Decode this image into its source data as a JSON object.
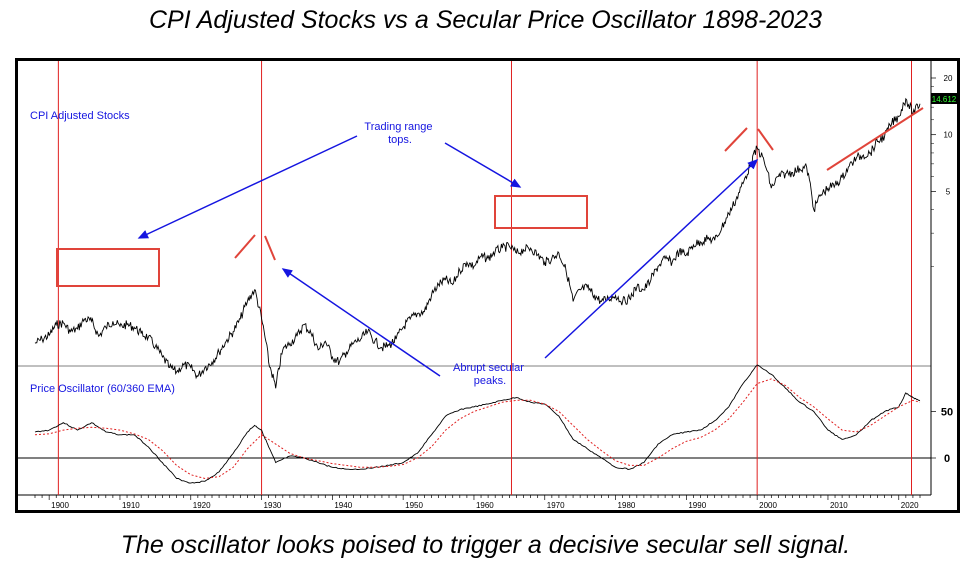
{
  "title": "CPI Adjusted Stocks vs a Secular Price Oscillator 1898-2023",
  "caption": "The oscillator looks poised to trigger a decisive secular sell signal.",
  "chart_data": [
    {
      "type": "line",
      "label": "CPI Adjusted Stocks",
      "y_scale": "log",
      "y_ticks": [
        5,
        10,
        20
      ],
      "last_value_badge": "14.612",
      "x_ticks": [
        "1900",
        "1910",
        "1920",
        "1930",
        "1940",
        "1950",
        "1960",
        "1970",
        "1980",
        "1990",
        "2000",
        "2010",
        "2020"
      ],
      "xlim": [
        1898,
        2023
      ],
      "series": [
        {
          "x": [
            1898,
            1899,
            1900,
            1901,
            1902,
            1903,
            1904,
            1905,
            1906,
            1907,
            1908,
            1909,
            1910,
            1911,
            1912,
            1913,
            1914,
            1915,
            1916,
            1917,
            1918,
            1919,
            1920,
            1921,
            1922,
            1923,
            1924,
            1925,
            1926,
            1927,
            1928,
            1929,
            1930,
            1931,
            1932,
            1933,
            1934,
            1935,
            1936,
            1937,
            1938,
            1939,
            1940,
            1941,
            1942,
            1943,
            1944,
            1945,
            1946,
            1947,
            1948,
            1949,
            1950,
            1951,
            1952,
            1953,
            1954,
            1955,
            1956,
            1957,
            1958,
            1959,
            1960,
            1961,
            1962,
            1963,
            1964,
            1965,
            1966,
            1967,
            1968,
            1969,
            1970,
            1971,
            1972,
            1973,
            1974,
            1975,
            1976,
            1977,
            1978,
            1979,
            1980,
            1981,
            1982,
            1983,
            1984,
            1985,
            1986,
            1987,
            1988,
            1989,
            1990,
            1991,
            1992,
            1993,
            1994,
            1995,
            1996,
            1997,
            1998,
            1999,
            2000,
            2001,
            2002,
            2003,
            2004,
            2005,
            2006,
            2007,
            2008,
            2009,
            2010,
            2011,
            2012,
            2013,
            2014,
            2015,
            2016,
            2017,
            2018,
            2019,
            2020,
            2021,
            2022,
            2023
          ],
          "values": [
            0.78,
            0.82,
            0.86,
            0.98,
            1.0,
            0.9,
            0.93,
            1.05,
            1.02,
            0.85,
            0.95,
            1.02,
            0.96,
            0.98,
            0.95,
            0.88,
            0.84,
            0.75,
            0.66,
            0.58,
            0.55,
            0.6,
            0.58,
            0.52,
            0.58,
            0.62,
            0.7,
            0.8,
            0.9,
            1.05,
            1.3,
            1.5,
            1.05,
            0.62,
            0.45,
            0.72,
            0.78,
            0.85,
            0.98,
            0.88,
            0.72,
            0.8,
            0.66,
            0.62,
            0.7,
            0.78,
            0.82,
            0.9,
            0.8,
            0.74,
            0.76,
            0.82,
            0.95,
            1.05,
            1.12,
            1.15,
            1.4,
            1.6,
            1.7,
            1.6,
            1.9,
            2.1,
            2.0,
            2.25,
            2.2,
            2.4,
            2.5,
            2.55,
            2.35,
            2.45,
            2.5,
            2.3,
            2.1,
            2.2,
            2.35,
            1.9,
            1.3,
            1.5,
            1.55,
            1.4,
            1.3,
            1.35,
            1.4,
            1.3,
            1.35,
            1.55,
            1.5,
            1.7,
            2.0,
            2.2,
            2.1,
            2.4,
            2.3,
            2.6,
            2.7,
            2.8,
            2.75,
            3.2,
            3.8,
            4.5,
            5.5,
            6.8,
            8.5,
            7.2,
            5.2,
            6.0,
            6.2,
            6.3,
            6.6,
            6.7,
            4.0,
            4.8,
            5.2,
            5.4,
            5.9,
            6.8,
            7.5,
            7.8,
            8.0,
            9.2,
            9.8,
            11.5,
            12.5,
            15.5,
            13.0,
            14.612
          ]
        }
      ],
      "annotations": [
        "Trading range tops.",
        "Abrupt secular peaks."
      ]
    },
    {
      "type": "line",
      "label": "Price Oscillator (60/360 EMA)",
      "y_ticks": [
        0,
        50
      ],
      "series": [
        {
          "style": "solid",
          "x": [
            1898,
            1900,
            1902,
            1904,
            1906,
            1908,
            1910,
            1912,
            1914,
            1916,
            1918,
            1920,
            1922,
            1924,
            1926,
            1928,
            1929,
            1930,
            1931,
            1932,
            1934,
            1936,
            1938,
            1940,
            1942,
            1944,
            1946,
            1948,
            1950,
            1952,
            1954,
            1956,
            1958,
            1960,
            1962,
            1964,
            1966,
            1968,
            1970,
            1972,
            1974,
            1976,
            1978,
            1980,
            1982,
            1984,
            1986,
            1988,
            1990,
            1992,
            1994,
            1996,
            1998,
            2000,
            2002,
            2004,
            2006,
            2008,
            2010,
            2012,
            2014,
            2016,
            2018,
            2020,
            2021,
            2022,
            2023
          ],
          "values": [
            28,
            30,
            38,
            30,
            38,
            28,
            25,
            25,
            12,
            -5,
            -22,
            -27,
            -25,
            -15,
            5,
            28,
            35,
            30,
            12,
            -5,
            2,
            0,
            -5,
            -10,
            -12,
            -12,
            -10,
            -8,
            -5,
            5,
            25,
            45,
            52,
            55,
            58,
            62,
            65,
            60,
            58,
            45,
            20,
            10,
            0,
            -10,
            -12,
            -5,
            15,
            25,
            28,
            30,
            40,
            55,
            80,
            100,
            90,
            75,
            60,
            50,
            30,
            20,
            25,
            40,
            50,
            55,
            70,
            65,
            62
          ]
        },
        {
          "style": "dashed",
          "x": [
            1898,
            1900,
            1902,
            1904,
            1906,
            1908,
            1910,
            1912,
            1914,
            1916,
            1918,
            1920,
            1922,
            1924,
            1926,
            1928,
            1930,
            1932,
            1934,
            1936,
            1938,
            1940,
            1942,
            1944,
            1946,
            1948,
            1950,
            1952,
            1954,
            1956,
            1958,
            1960,
            1962,
            1964,
            1966,
            1968,
            1970,
            1972,
            1974,
            1976,
            1978,
            1980,
            1982,
            1984,
            1986,
            1988,
            1990,
            1992,
            1994,
            1996,
            1998,
            2000,
            2002,
            2004,
            2006,
            2008,
            2010,
            2012,
            2014,
            2016,
            2018,
            2020,
            2022,
            2023
          ],
          "values": [
            25,
            26,
            30,
            32,
            33,
            32,
            30,
            26,
            20,
            8,
            -8,
            -18,
            -22,
            -20,
            -10,
            10,
            25,
            15,
            5,
            0,
            -3,
            -6,
            -8,
            -10,
            -10,
            -9,
            -7,
            0,
            12,
            30,
            42,
            50,
            55,
            60,
            62,
            62,
            58,
            50,
            35,
            20,
            8,
            -3,
            -8,
            -8,
            0,
            10,
            18,
            22,
            30,
            42,
            60,
            80,
            85,
            78,
            65,
            55,
            42,
            30,
            28,
            35,
            45,
            55,
            62,
            60
          ]
        }
      ]
    }
  ]
}
